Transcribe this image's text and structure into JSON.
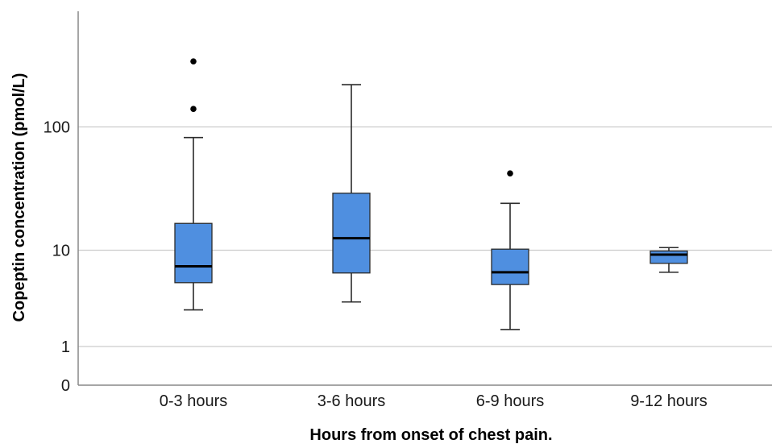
{
  "chart_data": {
    "type": "box",
    "title": "",
    "xlabel": "Hours from onset of chest pain.",
    "ylabel": "Copeptin concentration (pmol/L)",
    "yscale": "log (with 0 tick)",
    "yticks": [
      "0",
      "1",
      "10",
      "100"
    ],
    "grid": true,
    "categories": [
      "0-3 hours",
      "3-6 hours",
      "6-9 hours",
      "9-12 hours"
    ],
    "boxes": [
      {
        "min": 2.4,
        "q1": 4.6,
        "median": 6.8,
        "q3": 16.5,
        "max": 82,
        "outliers": [
          140,
          340
        ]
      },
      {
        "min": 2.9,
        "q1": 5.8,
        "median": 12.5,
        "q3": 29,
        "max": 220,
        "outliers": []
      },
      {
        "min": 1.5,
        "q1": 4.4,
        "median": 5.9,
        "q3": 10.2,
        "max": 24,
        "outliers": [
          42
        ]
      },
      {
        "min": 5.9,
        "q1": 7.3,
        "median": 9.0,
        "q3": 9.8,
        "max": 10.5,
        "outliers": []
      }
    ],
    "colors": {
      "box_fill": "#4f8fe0",
      "box_stroke": "#2b2b2b",
      "median": "#000000",
      "grid": "#cccccc",
      "axis": "#888888"
    }
  }
}
